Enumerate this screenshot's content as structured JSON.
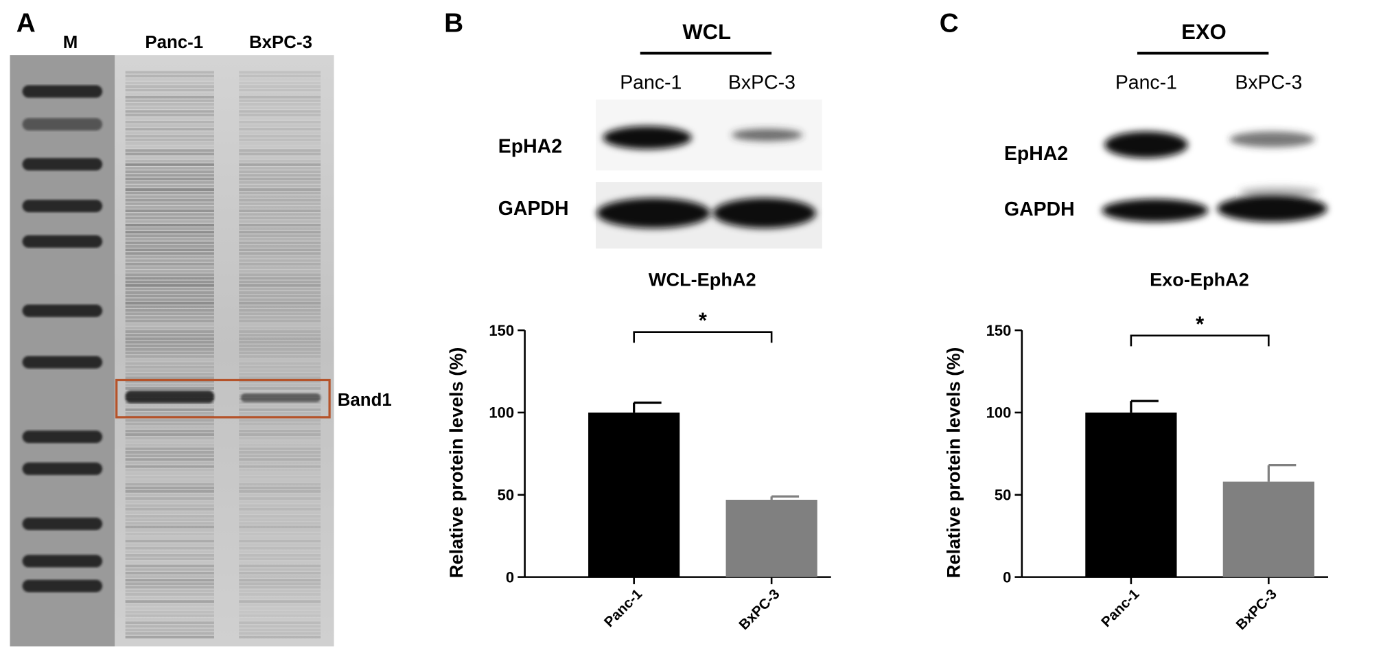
{
  "figure": {
    "panels": [
      {
        "label": "A",
        "lane_labels": [
          "M",
          "Panc-1",
          "BxPC-3"
        ],
        "box_label": "Band1"
      },
      {
        "label": "B",
        "header": "WCL",
        "lane_labels": [
          "Panc-1",
          "BxPC-3"
        ],
        "row_labels": [
          "EpHA2",
          "GAPDH"
        ]
      },
      {
        "label": "C",
        "header": "EXO",
        "lane_labels": [
          "Panc-1",
          "BxPC-3"
        ],
        "row_labels": [
          "EpHA2",
          "GAPDH"
        ]
      }
    ]
  },
  "chart_data": [
    {
      "type": "bar",
      "title": "WCL-EphA2",
      "y_label": "Relative protein levels (%)",
      "categories": [
        "Panc-1",
        "BxPC-3"
      ],
      "values": [
        100,
        47
      ],
      "errors": [
        6,
        2
      ],
      "colors": [
        "#000000",
        "#808080"
      ],
      "significance": "*",
      "ylim": [
        0,
        150
      ],
      "yticks": [
        0,
        50,
        100,
        150
      ],
      "grid": false
    },
    {
      "type": "bar",
      "title": "Exo-EphA2",
      "y_label": "Relative protein levels (%)",
      "categories": [
        "Panc-1",
        "BxPC-3"
      ],
      "values": [
        100,
        58
      ],
      "errors": [
        7,
        10
      ],
      "colors": [
        "#000000",
        "#808080"
      ],
      "significance": "*",
      "ylim": [
        0,
        150
      ],
      "yticks": [
        0,
        50,
        100,
        150
      ],
      "grid": false
    }
  ]
}
